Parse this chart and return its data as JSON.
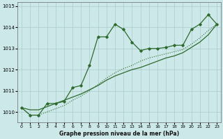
{
  "title": "Graphe pression niveau de la mer (hPa)",
  "bg_color": "#cce8e8",
  "grid_color": "#aacccc",
  "line_color": "#2d6a2d",
  "x_values": [
    0,
    1,
    2,
    3,
    4,
    5,
    6,
    7,
    8,
    9,
    10,
    11,
    12,
    13,
    14,
    15,
    16,
    17,
    18,
    19,
    20,
    21,
    22,
    23
  ],
  "y_main": [
    1010.2,
    1009.85,
    1009.85,
    1010.4,
    1010.4,
    1010.5,
    1011.15,
    1011.25,
    1012.2,
    1013.55,
    1013.55,
    1014.15,
    1013.9,
    1013.3,
    1012.9,
    1013.0,
    1013.0,
    1013.05,
    1013.15,
    1013.15,
    1013.9,
    1014.15,
    1014.6,
    1014.15
  ],
  "y_line2": [
    1010.2,
    1010.1,
    1010.1,
    1010.25,
    1010.4,
    1010.55,
    1010.7,
    1010.85,
    1011.05,
    1011.25,
    1011.5,
    1011.7,
    1011.85,
    1012.0,
    1012.1,
    1012.25,
    1012.4,
    1012.55,
    1012.65,
    1012.8,
    1013.05,
    1013.3,
    1013.65,
    1014.15
  ],
  "y_dotted": [
    1010.2,
    1009.85,
    1009.85,
    1010.0,
    1010.15,
    1010.3,
    1010.55,
    1010.75,
    1011.0,
    1011.3,
    1011.6,
    1011.85,
    1012.05,
    1012.2,
    1012.4,
    1012.55,
    1012.65,
    1012.75,
    1012.85,
    1012.95,
    1013.2,
    1013.5,
    1013.85,
    1014.15
  ],
  "xlim": [
    -0.5,
    23.5
  ],
  "ylim": [
    1009.5,
    1015.2
  ],
  "yticks": [
    1010,
    1011,
    1012,
    1013,
    1014,
    1015
  ],
  "xticks": [
    0,
    1,
    2,
    3,
    4,
    5,
    6,
    7,
    8,
    9,
    10,
    11,
    12,
    13,
    14,
    15,
    16,
    17,
    18,
    19,
    20,
    21,
    22,
    23
  ]
}
